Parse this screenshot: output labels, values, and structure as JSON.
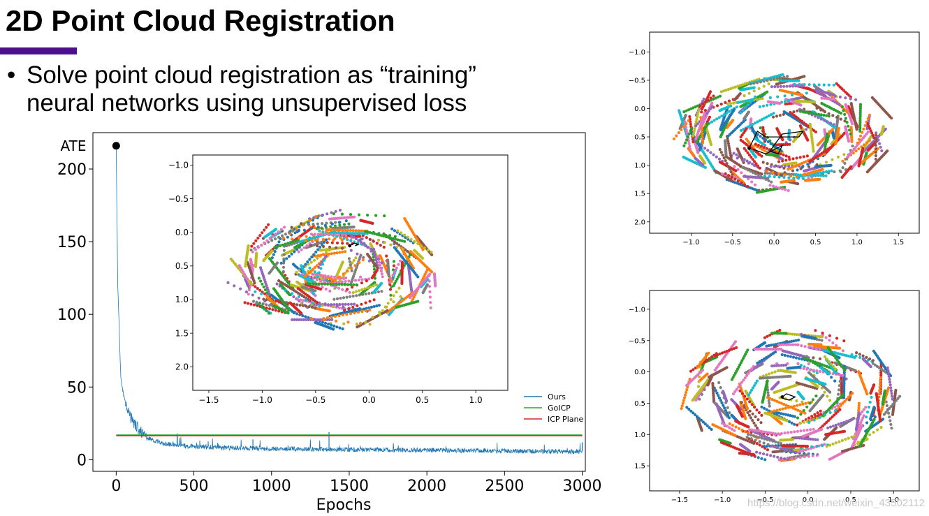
{
  "slide": {
    "title": "2D Point Cloud Registration",
    "bullet_symbol": "•",
    "bullet_lines": [
      "Solve point cloud registration as “training”",
      "neural networks using unsupervised loss"
    ],
    "accent_color": "#4b0f8f",
    "watermark": "https://blog.csdn.net/weixin_43502112"
  },
  "point_palette": [
    "#1f77b4",
    "#ff7f0e",
    "#2ca02c",
    "#d62728",
    "#9467bd",
    "#8c564b",
    "#e377c2",
    "#7f7f7f",
    "#bcbd22",
    "#17becf"
  ],
  "chart_data": [
    {
      "type": "line",
      "ylabel": "ATE",
      "xlabel": "Epochs",
      "xlim": [
        -150,
        3020
      ],
      "ylim": [
        -8,
        225
      ],
      "x_ticks": [
        0,
        500,
        1000,
        1500,
        2000,
        2500,
        3000
      ],
      "y_ticks": [
        0,
        50,
        100,
        150,
        200
      ],
      "legend_position": "bottom-right",
      "start_marker": {
        "x": 0,
        "y": 216
      },
      "series": [
        {
          "name": "Ours",
          "color": "#1f77b4",
          "x": [
            0,
            10,
            30,
            60,
            100,
            150,
            200,
            300,
            500,
            800,
            1000,
            1500,
            2000,
            2500,
            3000
          ],
          "y": [
            216,
            120,
            55,
            38,
            28,
            20,
            15,
            11,
            9,
            8,
            7.5,
            7,
            6.5,
            6,
            5.5
          ]
        },
        {
          "name": "GoICP",
          "color": "#2ca02c",
          "x": [
            0,
            3000
          ],
          "y": [
            17,
            17
          ]
        },
        {
          "name": "ICP Plane",
          "color": "#d62728",
          "x": [
            0,
            3000
          ],
          "y": [
            16.5,
            16.5
          ]
        }
      ]
    },
    {
      "type": "scatter",
      "xlim": [
        -1.65,
        1.3
      ],
      "ylim": [
        2.35,
        -1.15
      ],
      "x_ticks": [
        -1.5,
        -1.0,
        -0.5,
        0.0,
        0.5,
        1.0
      ],
      "y_ticks": [
        -1.0,
        -0.5,
        0.0,
        0.5,
        1.0,
        1.5,
        2.0
      ],
      "x_tick_labels": [
        "−1.5",
        "−1.0",
        "−0.5",
        "0.0",
        "0.5",
        "1.0"
      ],
      "y_tick_labels": [
        "−1.0",
        "−0.5",
        "0.0",
        "0.5",
        "1.0",
        "1.5",
        "2.0"
      ],
      "trajectory": [
        [
          -0.18,
          0.2
        ],
        [
          -0.14,
          0.16
        ],
        [
          -0.1,
          0.18
        ],
        [
          -0.13,
          0.2
        ]
      ],
      "cloud": {
        "seed": 7,
        "rows": 170,
        "center": [
          -0.3,
          0.55
        ],
        "radius": [
          0.95,
          0.85
        ]
      }
    },
    {
      "type": "scatter",
      "xlim": [
        -1.5,
        1.75
      ],
      "ylim": [
        2.2,
        -1.35
      ],
      "x_ticks": [
        -1.0,
        -0.5,
        0.0,
        0.5,
        1.0,
        1.5
      ],
      "y_ticks": [
        -1.0,
        -0.5,
        0.0,
        0.5,
        1.0,
        1.5,
        2.0
      ],
      "x_tick_labels": [
        "−1.0",
        "−0.5",
        "0.0",
        "0.5",
        "1.0",
        "1.5"
      ],
      "y_tick_labels": [
        "−1.0",
        "−0.5",
        "0.0",
        "0.5",
        "1.0",
        "1.5",
        "2.0"
      ],
      "trajectory": [
        [
          -0.3,
          0.7
        ],
        [
          -0.2,
          0.4
        ],
        [
          -0.1,
          0.5
        ],
        [
          0.0,
          0.5
        ],
        [
          0.1,
          0.5
        ],
        [
          0.3,
          0.5
        ],
        [
          0.35,
          0.4
        ],
        [
          0.1,
          0.45
        ],
        [
          -0.05,
          0.75
        ],
        [
          0.05,
          0.8
        ],
        [
          0.1,
          0.65
        ],
        [
          -0.1,
          0.8
        ],
        [
          -0.25,
          0.72
        ]
      ],
      "cloud": {
        "seed": 11,
        "rows": 190,
        "center": [
          0.15,
          0.45
        ],
        "radius": [
          1.3,
          1.0
        ]
      }
    },
    {
      "type": "scatter",
      "xlim": [
        -1.85,
        1.3
      ],
      "ylim": [
        1.9,
        -1.3
      ],
      "x_ticks": [
        -1.5,
        -1.0,
        -0.5,
        0.0,
        0.5,
        1.0
      ],
      "y_ticks": [
        -1.0,
        -0.5,
        0.0,
        0.5,
        1.0,
        1.5
      ],
      "x_tick_labels": [
        "−1.5",
        "−1.0",
        "−0.5",
        "0.0",
        "0.5",
        "1.0"
      ],
      "y_tick_labels": [
        "−1.0",
        "−0.5",
        "0.0",
        "0.5",
        "1.0",
        "1.5"
      ],
      "trajectory": [
        [
          -0.3,
          0.4
        ],
        [
          -0.25,
          0.35
        ],
        [
          -0.15,
          0.4
        ],
        [
          -0.22,
          0.45
        ],
        [
          -0.3,
          0.42
        ]
      ],
      "cloud": {
        "seed": 19,
        "rows": 180,
        "center": [
          -0.2,
          0.4
        ],
        "radius": [
          1.25,
          1.05
        ]
      }
    }
  ]
}
